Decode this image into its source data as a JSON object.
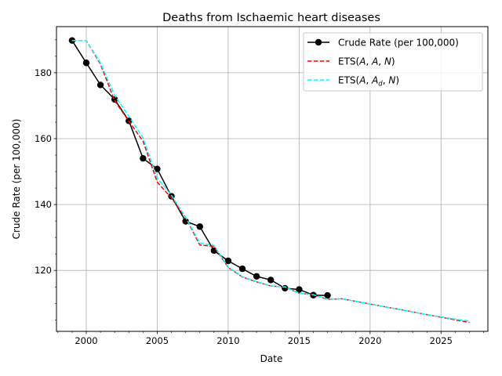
{
  "chart_data": {
    "type": "line",
    "title": "Deaths from Ischaemic heart diseases",
    "xlabel": "Date",
    "ylabel": "Crude Rate (per 100,000)",
    "xlim": [
      1997.9,
      2028.3
    ],
    "ylim": [
      101.5,
      194.0
    ],
    "xticks": [
      2000,
      2005,
      2010,
      2015,
      2020,
      2025
    ],
    "yticks": [
      120,
      140,
      160,
      180
    ],
    "grid": true,
    "legend_position": "top-right",
    "series": [
      {
        "name": "Crude Rate (per 100,000)",
        "label_parts": [
          "Crude Rate (per 100,000)"
        ],
        "color": "#000000",
        "style": "solid-marker",
        "x": [
          1999,
          2000,
          2001,
          2002,
          2003,
          2004,
          2005,
          2006,
          2007,
          2008,
          2009,
          2010,
          2011,
          2012,
          2013,
          2014,
          2015,
          2016,
          2017
        ],
        "y": [
          189.8,
          183.0,
          176.3,
          171.9,
          165.4,
          154.0,
          150.8,
          142.5,
          134.9,
          133.3,
          126.0,
          122.9,
          120.5,
          118.2,
          117.1,
          114.6,
          114.2,
          112.5,
          112.4
        ]
      },
      {
        "name": "ETS(A, A, N)",
        "label_parts": [
          "ETS(",
          "A",
          ", ",
          "A",
          ", ",
          "N",
          ")"
        ],
        "color": "#ff0000",
        "style": "dashed",
        "x": [
          1999,
          2000,
          2001,
          2002,
          2003,
          2004,
          2005,
          2006,
          2007,
          2008,
          2009,
          2010,
          2011,
          2012,
          2013,
          2014,
          2015,
          2016,
          2017,
          2018,
          2019,
          2020,
          2021,
          2022,
          2023,
          2024,
          2025,
          2026,
          2027
        ],
        "y": [
          189.8,
          189.8,
          182.6,
          171.5,
          165.3,
          159.2,
          146.8,
          142.0,
          136.1,
          127.7,
          127.3,
          120.9,
          118.0,
          116.5,
          115.3,
          114.9,
          113.1,
          112.6,
          111.2,
          111.4,
          110.6,
          109.8,
          109.0,
          108.2,
          107.4,
          106.6,
          105.8,
          105.0,
          104.2
        ]
      },
      {
        "name": "ETS(A, A_d, N)",
        "label_parts": [
          "ETS(",
          "A",
          ", ",
          "A",
          "d",
          ", ",
          "N",
          ")"
        ],
        "color": "#00ffff",
        "style": "dashed",
        "x": [
          1999,
          2000,
          2001,
          2002,
          2003,
          2004,
          2005,
          2006,
          2007,
          2008,
          2009,
          2010,
          2011,
          2012,
          2013,
          2014,
          2015,
          2016,
          2017,
          2018,
          2019,
          2020,
          2021,
          2022,
          2023,
          2024,
          2025,
          2026,
          2027
        ],
        "y": [
          189.8,
          189.8,
          183.0,
          173.1,
          166.8,
          160.2,
          148.0,
          142.8,
          136.2,
          128.3,
          127.6,
          121.0,
          118.1,
          116.6,
          115.3,
          115.0,
          113.1,
          112.6,
          111.3,
          111.4,
          110.6,
          109.8,
          109.0,
          108.2,
          107.4,
          106.6,
          105.9,
          105.2,
          104.6
        ]
      }
    ]
  }
}
